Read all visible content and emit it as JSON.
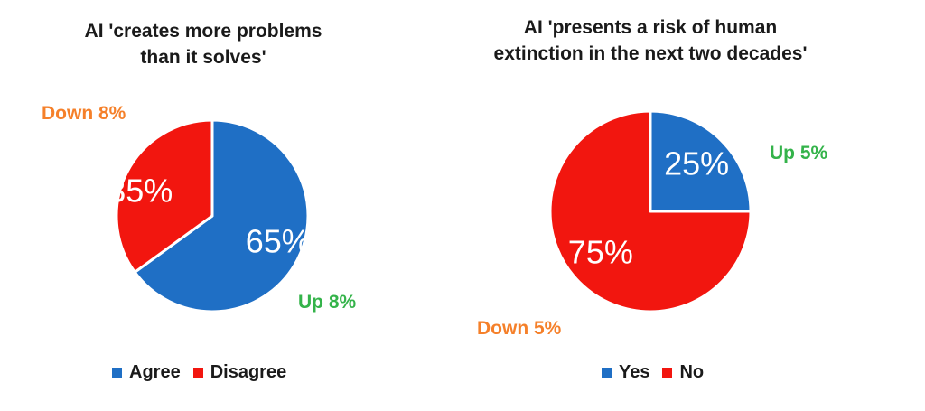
{
  "chart_data": [
    {
      "type": "pie",
      "title": [
        "AI 'creates more problems",
        "than it solves'"
      ],
      "slices": [
        {
          "label": "Agree",
          "value": 65,
          "display": "65%",
          "color": "#1f6fc5"
        },
        {
          "label": "Disagree",
          "value": 35,
          "display": "35%",
          "color": "#f2160f"
        }
      ],
      "annotations": [
        {
          "text": "Down 8%",
          "slice": "Disagree",
          "color": "#f5802a"
        },
        {
          "text": "Up 8%",
          "slice": "Agree",
          "color": "#34b34a"
        }
      ],
      "legend_position": "bottom"
    },
    {
      "type": "pie",
      "title": [
        "AI 'presents a risk of human",
        "extinction in the next two decades'"
      ],
      "slices": [
        {
          "label": "Yes",
          "value": 25,
          "display": "25%",
          "color": "#1f6fc5"
        },
        {
          "label": "No",
          "value": 75,
          "display": "75%",
          "color": "#f2160f"
        }
      ],
      "annotations": [
        {
          "text": "Up 5%",
          "slice": "Yes",
          "color": "#34b34a"
        },
        {
          "text": "Down 5%",
          "slice": "No",
          "color": "#f5802a"
        }
      ],
      "legend_position": "bottom"
    }
  ]
}
